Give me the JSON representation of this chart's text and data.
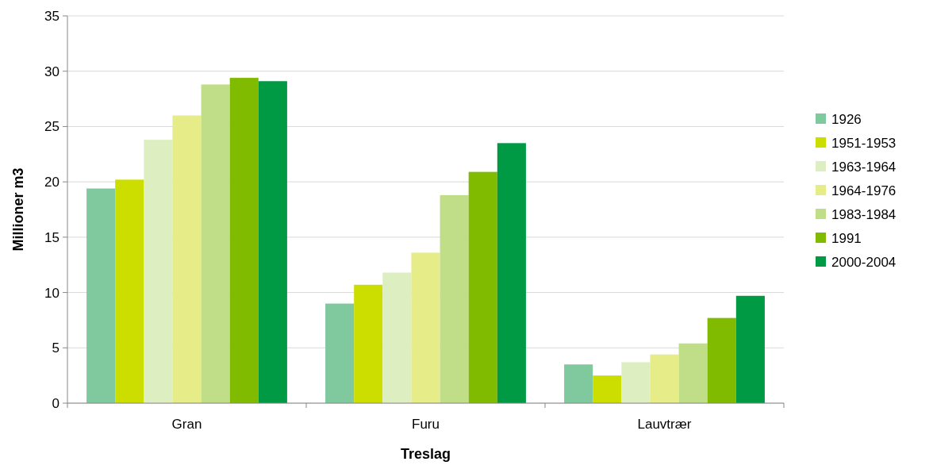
{
  "chart_data": {
    "type": "bar",
    "xlabel": "Treslag",
    "ylabel": "Millioner m3",
    "categories": [
      "Gran",
      "Furu",
      "Lauvtrær"
    ],
    "series": [
      {
        "name": "1926",
        "color": "#80c99f",
        "values": [
          19.4,
          9.0,
          3.5
        ]
      },
      {
        "name": "1951-1953",
        "color": "#ccdd00",
        "values": [
          20.2,
          10.7,
          2.5
        ]
      },
      {
        "name": "1963-1964",
        "color": "#ddeec0",
        "values": [
          23.8,
          11.8,
          3.7
        ]
      },
      {
        "name": "1964-1976",
        "color": "#e5ec88",
        "values": [
          26.0,
          13.6,
          4.4
        ]
      },
      {
        "name": "1983-1984",
        "color": "#c0dd88",
        "values": [
          28.8,
          18.8,
          5.4
        ]
      },
      {
        "name": "1991",
        "color": "#80bb00",
        "values": [
          29.4,
          20.9,
          7.7
        ]
      },
      {
        "name": "2000-2004",
        "color": "#009944",
        "values": [
          29.1,
          23.5,
          9.7
        ]
      }
    ],
    "ylim": [
      0,
      35
    ],
    "yticks": [
      0,
      5,
      10,
      15,
      20,
      25,
      30,
      35
    ],
    "grid": "y",
    "legend": "right"
  }
}
